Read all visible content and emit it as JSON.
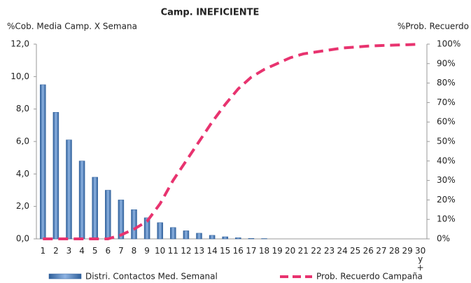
{
  "chart_data": {
    "type": "bar+line",
    "title": "Camp. INEFICIENTE",
    "y_label": "%Cob. Media Camp. X Semana",
    "y2_label": "%Prob. Recuerdo",
    "categories": [
      "1",
      "2",
      "3",
      "4",
      "5",
      "6",
      "7",
      "8",
      "9",
      "10",
      "11",
      "12",
      "13",
      "14",
      "15",
      "16",
      "17",
      "18",
      "19",
      "20",
      "21",
      "22",
      "23",
      "24",
      "25",
      "26",
      "27",
      "28",
      "29",
      "30 y +"
    ],
    "series": [
      {
        "name": "Distri. Contactos Med. Semanal",
        "type": "bar",
        "color": "#4f81bd",
        "values": [
          9.5,
          7.8,
          6.1,
          4.8,
          3.8,
          3.0,
          2.4,
          1.8,
          1.3,
          1.0,
          0.7,
          0.5,
          0.35,
          0.22,
          0.13,
          0.07,
          0.03,
          0.02,
          0,
          0,
          0,
          0,
          0,
          0,
          0,
          0,
          0,
          0,
          0,
          0
        ]
      },
      {
        "name": "Prob. Recuerdo Campaña",
        "type": "line",
        "axis": "y2",
        "color": "#e8336f",
        "values": [
          0,
          0,
          0,
          0,
          0,
          0,
          2,
          5,
          9,
          18,
          30,
          40,
          50,
          60,
          69,
          77,
          83,
          87,
          90,
          93,
          95,
          96,
          97,
          98,
          98.5,
          99,
          99.3,
          99.5,
          99.7,
          100
        ]
      }
    ],
    "ylim": [
      0,
      12
    ],
    "yticks": [
      {
        "value": 0,
        "label": "0,0"
      },
      {
        "value": 2,
        "label": "2,0"
      },
      {
        "value": 4,
        "label": "4,0"
      },
      {
        "value": 6,
        "label": "6,0"
      },
      {
        "value": 8,
        "label": "8,0"
      },
      {
        "value": 10,
        "label": "10,0"
      },
      {
        "value": 12,
        "label": "12,0"
      }
    ],
    "y2lim": [
      0,
      100
    ],
    "y2ticks": [
      {
        "value": 0,
        "label": "0%"
      },
      {
        "value": 10,
        "label": "10%"
      },
      {
        "value": 20,
        "label": "20%"
      },
      {
        "value": 30,
        "label": "30%"
      },
      {
        "value": 40,
        "label": "40%"
      },
      {
        "value": 50,
        "label": "50%"
      },
      {
        "value": 60,
        "label": "60%"
      },
      {
        "value": 70,
        "label": "70%"
      },
      {
        "value": 80,
        "label": "80%"
      },
      {
        "value": 90,
        "label": "90%"
      },
      {
        "value": 100,
        "label": "100%"
      }
    ],
    "grid": false,
    "legend": "bottom"
  }
}
